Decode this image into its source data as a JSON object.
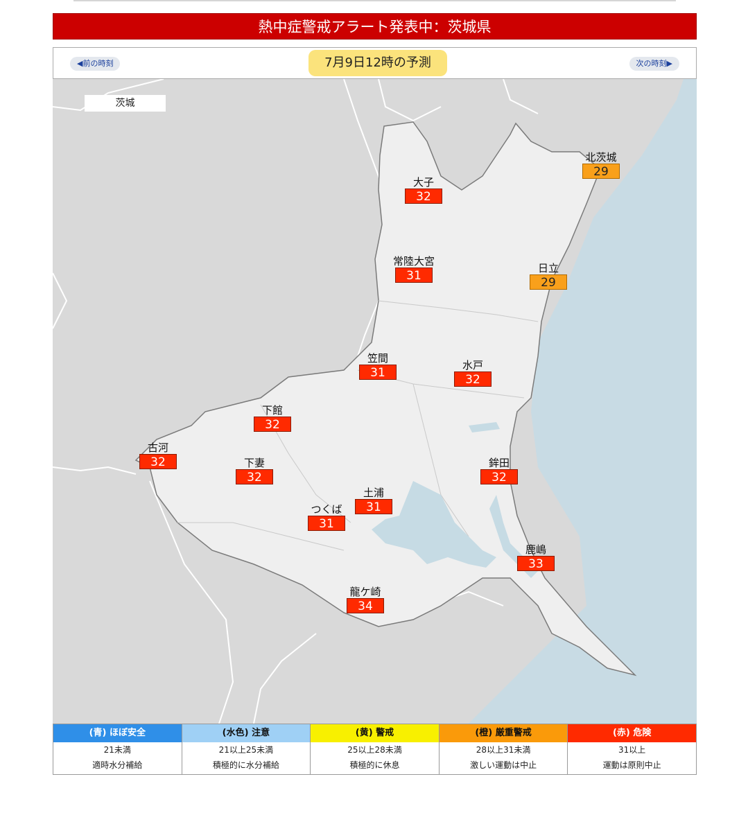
{
  "alert": {
    "title": "熱中症警戒アラート発表中：茨城県"
  },
  "nav": {
    "prev_label": "◀前の時刻",
    "next_label": "次の時刻▶",
    "time_label": "7月9日12時の予測"
  },
  "map": {
    "prefecture_tag": "茨城",
    "stations": [
      {
        "name": "北茨城",
        "value": "29",
        "level": "orange"
      },
      {
        "name": "大子",
        "value": "32",
        "level": "red"
      },
      {
        "name": "常陸大宮",
        "value": "31",
        "level": "red"
      },
      {
        "name": "日立",
        "value": "29",
        "level": "orange"
      },
      {
        "name": "笠間",
        "value": "31",
        "level": "red"
      },
      {
        "name": "水戸",
        "value": "32",
        "level": "red"
      },
      {
        "name": "下館",
        "value": "32",
        "level": "red"
      },
      {
        "name": "古河",
        "value": "32",
        "level": "red"
      },
      {
        "name": "下妻",
        "value": "32",
        "level": "red"
      },
      {
        "name": "鉾田",
        "value": "32",
        "level": "red"
      },
      {
        "name": "土浦",
        "value": "31",
        "level": "red"
      },
      {
        "name": "つくば",
        "value": "31",
        "level": "red"
      },
      {
        "name": "鹿嶋",
        "value": "33",
        "level": "red"
      },
      {
        "name": "龍ケ崎",
        "value": "34",
        "level": "red"
      }
    ]
  },
  "legend": [
    {
      "head": "(青) ほぼ安全",
      "range": "21未満",
      "advice": "適時水分補給",
      "color": "#2f8fe8",
      "text_color": "#ffffff"
    },
    {
      "head": "(水色) 注意",
      "range": "21以上25未満",
      "advice": "積極的に水分補給",
      "color": "#9fd0f5",
      "text_color": "#111111"
    },
    {
      "head": "(黄) 警戒",
      "range": "25以上28未満",
      "advice": "積極的に休息",
      "color": "#f8f000",
      "text_color": "#111111"
    },
    {
      "head": "(橙) 厳重警戒",
      "range": "28以上31未満",
      "advice": "激しい運動は中止",
      "color": "#fa9a0a",
      "text_color": "#111111"
    },
    {
      "head": "(赤) 危険",
      "range": "31以上",
      "advice": "運動は原則中止",
      "color": "#ff2a00",
      "text_color": "#ffffff"
    }
  ],
  "colors": {
    "red": "#ff2a00",
    "orange": "#f9a01b",
    "sea": "#c8dbe4",
    "land": "#efefef",
    "neighbor": "#d9d9d9",
    "lake": "#c6dbe4"
  }
}
